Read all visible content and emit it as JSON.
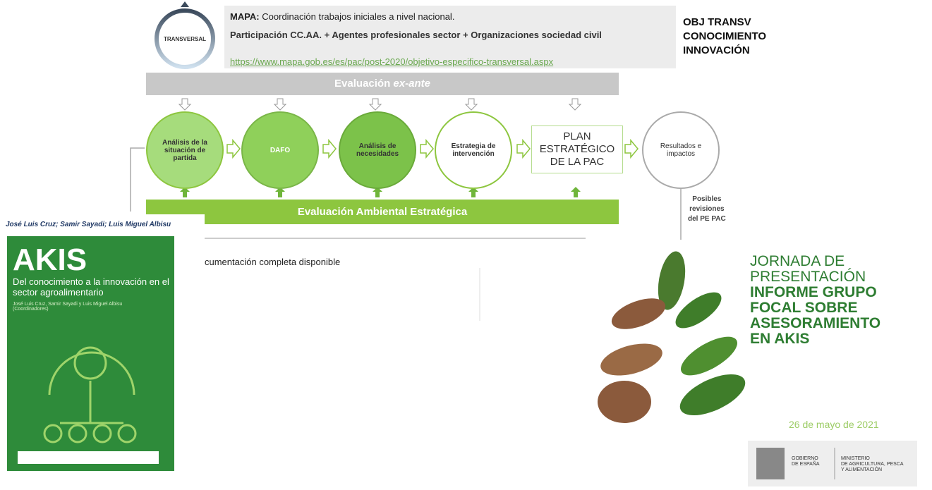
{
  "header": {
    "badge": "TRANSVERSAL",
    "mapa_label": "MAPA:",
    "mapa_text": "Coordinación trabajos iniciales a nivel nacional.",
    "participation": "Participación CC.AA. + Agentes profesionales sector + Organizaciones sociedad civil",
    "link": "https://www.mapa.gob.es/es/pac/post-2020/objetivo-especifico-transversal.aspx",
    "objective": [
      "OBJ TRANSV",
      "CONOCIMIENTO",
      "INNOVACIÓN"
    ]
  },
  "process": {
    "ex_ante": "Evaluación",
    "ex_ante_italic": "ex-ante",
    "steps": [
      "Análisis de la situación de partida",
      "DAFO",
      "Análisis de necesidades",
      "Estrategia de intervención"
    ],
    "plan": [
      "PLAN",
      "ESTRATÉGICO",
      "DE LA PAC"
    ],
    "results": "Resultados e impactos",
    "environmental": "Evaluación Ambiental Estratégica",
    "revisions": [
      "Posibles",
      "revisiones",
      "del PE PAC"
    ]
  },
  "book": {
    "authors": "José Luis Cruz; Samir Sayadi; Luis Miguel Albisu",
    "title": "AKIS",
    "subtitle": "Del conocimiento a la innovación en el sector agroalimentario",
    "coordinators": "José Luis Cruz, Samir Sayadi y Luis Miguel Albisu (Coordinadores)"
  },
  "note": "cumentación completa disponible",
  "event": {
    "intro": [
      "JORNADA DE",
      "PRESENTACIÓN"
    ],
    "highlight": [
      "INFORME GRUPO",
      "FOCAL SOBRE",
      "ASESORAMIENTO",
      "EN AKIS"
    ],
    "date": "26 de mayo de 2021",
    "government": [
      "GOBIERNO",
      "DE ESPAÑA"
    ],
    "ministry": [
      "MINISTERIO",
      "DE AGRICULTURA, PESCA",
      "Y ALIMENTACIÓN"
    ]
  }
}
